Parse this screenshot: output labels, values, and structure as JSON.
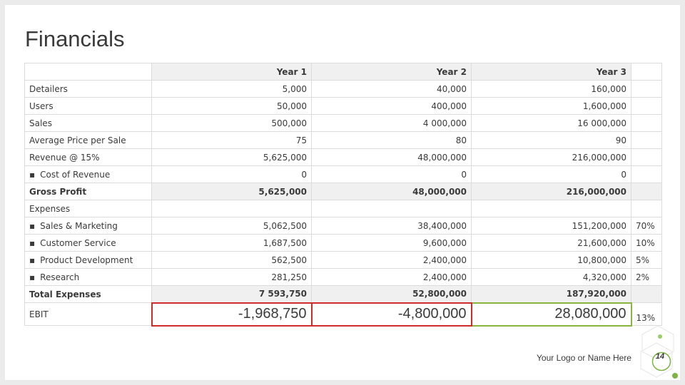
{
  "title": "Financials",
  "header": [
    "Year 1",
    "Year 2",
    "Year 3"
  ],
  "rows": [
    {
      "label": "Detailers",
      "v": [
        "5,000",
        "40,000",
        "160,000"
      ],
      "pct": ""
    },
    {
      "label": "Users",
      "v": [
        "50,000",
        "400,000",
        "1,600,000"
      ],
      "pct": ""
    },
    {
      "label": "Sales",
      "v": [
        "500,000",
        "4 000,000",
        "16 000,000"
      ],
      "pct": ""
    },
    {
      "label": "Average Price per Sale",
      "v": [
        "75",
        "80",
        "90"
      ],
      "pct": ""
    },
    {
      "label": "Revenue @ 15%",
      "v": [
        "5,625,000",
        "48,000,000",
        "216,000,000"
      ],
      "pct": ""
    },
    {
      "label": "Cost of Revenue",
      "v": [
        "0",
        "0",
        "0"
      ],
      "pct": ""
    },
    {
      "label": "Gross Profit",
      "v": [
        "5,625,000",
        "48,000,000",
        "216,000,000"
      ],
      "pct": ""
    },
    {
      "label": "Expenses",
      "v": [
        "",
        "",
        ""
      ],
      "pct": ""
    },
    {
      "label": "Sales & Marketing",
      "v": [
        "5,062,500",
        "38,400,000",
        "151,200,000"
      ],
      "pct": "70%"
    },
    {
      "label": "Customer Service",
      "v": [
        "1,687,500",
        "9,600,000",
        "21,600,000"
      ],
      "pct": "10%"
    },
    {
      "label": "Product Development",
      "v": [
        "562,500",
        "2,400,000",
        "10,800,000"
      ],
      "pct": "5%"
    },
    {
      "label": "Research",
      "v": [
        "281,250",
        "2,400,000",
        "4,320,000"
      ],
      "pct": "2%"
    },
    {
      "label": "Total Expenses",
      "v": [
        "7 593,750",
        "52,800,000",
        "187,920,000"
      ],
      "pct": ""
    },
    {
      "label": "EBIT",
      "v": [
        "-1,968,750",
        "-4,800,000",
        "28,080,000"
      ],
      "pct": "13%"
    }
  ],
  "bullet": "▪",
  "footer": {
    "logo_text": "Your Logo or Name Here",
    "page_number": "14"
  },
  "colors": {
    "negative": "#d02b2b",
    "positive": "#8ab63e",
    "accent": "#7cb342"
  }
}
